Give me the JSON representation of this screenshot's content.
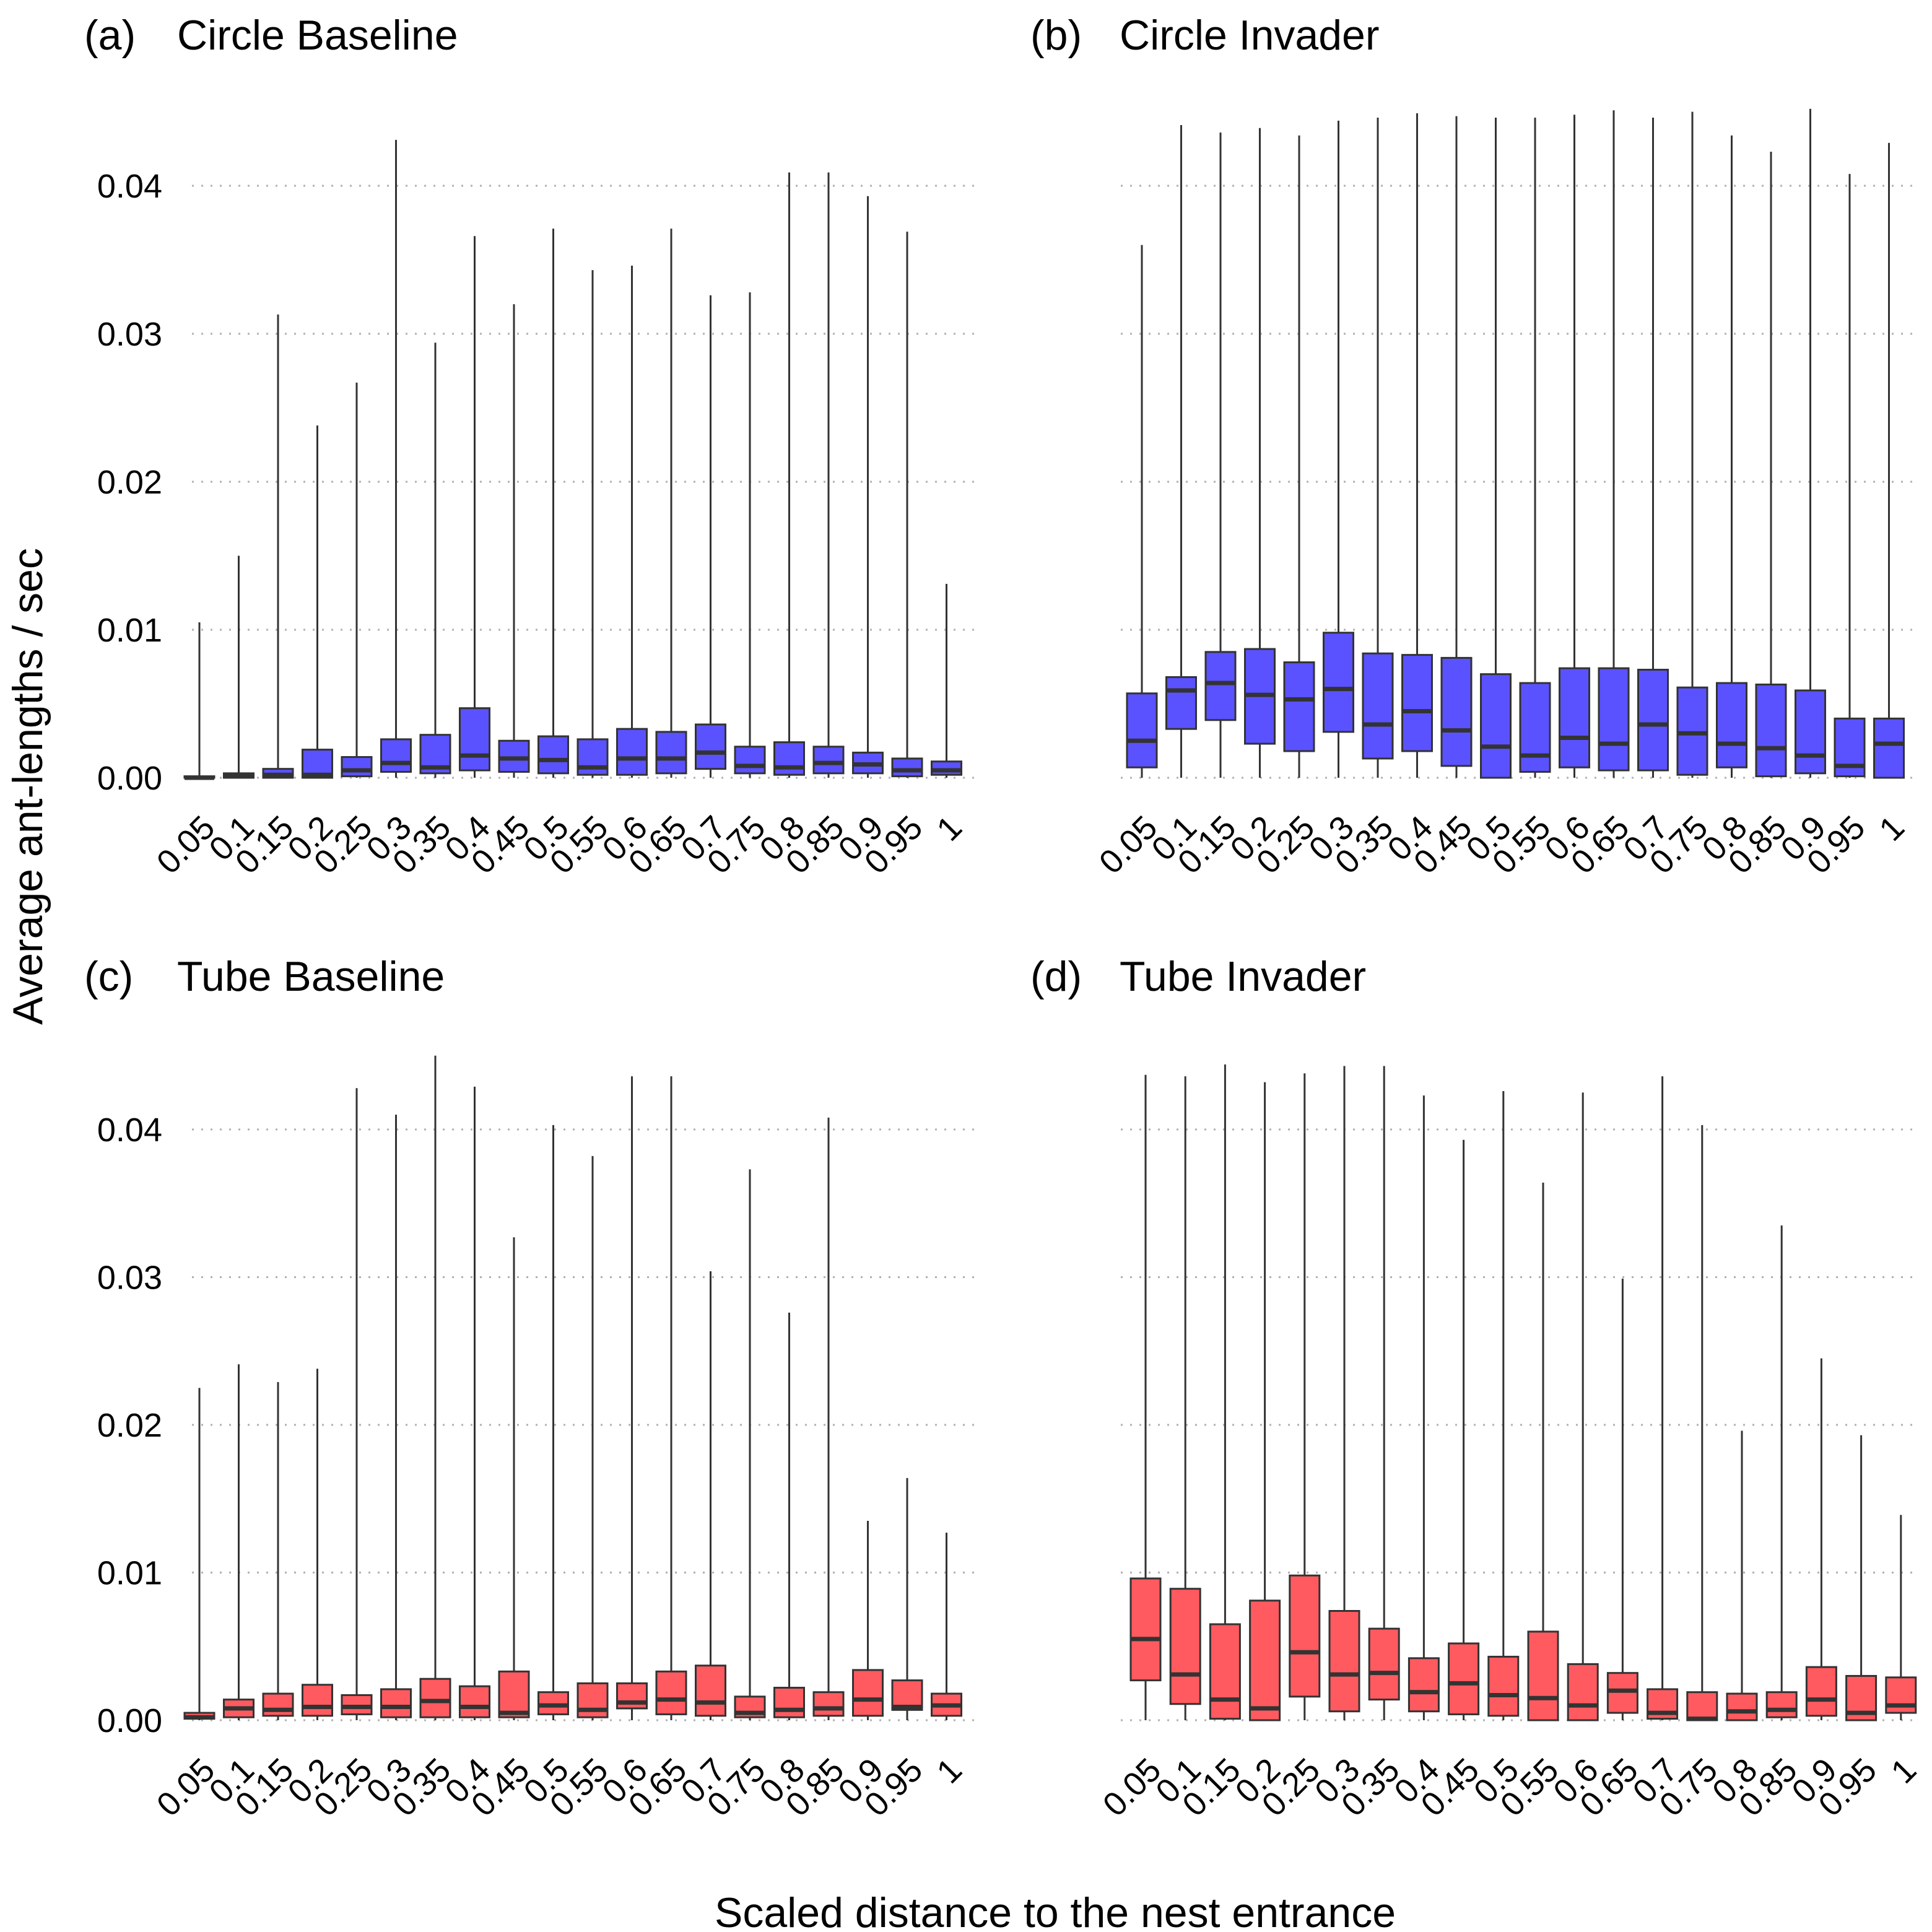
{
  "chart_data": {
    "type": "boxplot",
    "xlabel": "Scaled distance to the nest entrance",
    "ylabel": "Average ant-lengths / sec",
    "ylim": [
      0,
      0.045
    ],
    "yticks": [
      "0.00",
      "0.01",
      "0.02",
      "0.03",
      "0.04"
    ],
    "ytick_values": [
      0,
      0.01,
      0.02,
      0.03,
      0.04
    ],
    "categories": [
      "0.05",
      "0.1",
      "0.15",
      "0.2",
      "0.25",
      "0.3",
      "0.35",
      "0.4",
      "0.45",
      "0.5",
      "0.55",
      "0.6",
      "0.65",
      "0.7",
      "0.75",
      "0.8",
      "0.85",
      "0.9",
      "0.95",
      "1"
    ],
    "grid": "horizontal dotted",
    "colors": {
      "circle": "#5B52FF",
      "tube": "#FF5A5F",
      "outline": "#333333",
      "grid": "#B0B0B0"
    },
    "panels": [
      {
        "tag": "(a)",
        "title": "Circle Baseline",
        "fill": "circle",
        "boxes": [
          {
            "min": 0,
            "q1": 0,
            "median": 0,
            "q3": 0.0001,
            "max": 0.0105
          },
          {
            "min": 0,
            "q1": 0,
            "median": 0.0001,
            "q3": 0.0003,
            "max": 0.015
          },
          {
            "min": 0,
            "q1": 0,
            "median": 0.0002,
            "q3": 0.0006,
            "max": 0.0313
          },
          {
            "min": 0,
            "q1": 0,
            "median": 0.0002,
            "q3": 0.0019,
            "max": 0.0238
          },
          {
            "min": 0,
            "q1": 0.0001,
            "median": 0.0005,
            "q3": 0.0014,
            "max": 0.0267
          },
          {
            "min": 0,
            "q1": 0.0004,
            "median": 0.001,
            "q3": 0.0026,
            "max": 0.0431
          },
          {
            "min": 0,
            "q1": 0.0003,
            "median": 0.0007,
            "q3": 0.0029,
            "max": 0.0294
          },
          {
            "min": 0,
            "q1": 0.0005,
            "median": 0.0015,
            "q3": 0.0047,
            "max": 0.0366
          },
          {
            "min": 0,
            "q1": 0.0004,
            "median": 0.0013,
            "q3": 0.0025,
            "max": 0.032
          },
          {
            "min": 0,
            "q1": 0.0003,
            "median": 0.0012,
            "q3": 0.0028,
            "max": 0.0371
          },
          {
            "min": 0,
            "q1": 0.0002,
            "median": 0.0007,
            "q3": 0.0026,
            "max": 0.0343
          },
          {
            "min": 0,
            "q1": 0.0002,
            "median": 0.0013,
            "q3": 0.0033,
            "max": 0.0346
          },
          {
            "min": 0,
            "q1": 0.0003,
            "median": 0.0013,
            "q3": 0.0031,
            "max": 0.0371
          },
          {
            "min": 0,
            "q1": 0.0006,
            "median": 0.0017,
            "q3": 0.0036,
            "max": 0.0326
          },
          {
            "min": 0,
            "q1": 0.0003,
            "median": 0.0008,
            "q3": 0.0021,
            "max": 0.0328
          },
          {
            "min": 0,
            "q1": 0.0002,
            "median": 0.0007,
            "q3": 0.0024,
            "max": 0.0409
          },
          {
            "min": 0,
            "q1": 0.0003,
            "median": 0.001,
            "q3": 0.0021,
            "max": 0.0409
          },
          {
            "min": 0,
            "q1": 0.0003,
            "median": 0.0009,
            "q3": 0.0017,
            "max": 0.0393
          },
          {
            "min": 0,
            "q1": 0.0001,
            "median": 0.0005,
            "q3": 0.0013,
            "max": 0.0369
          },
          {
            "min": 0,
            "q1": 0.0002,
            "median": 0.0005,
            "q3": 0.0011,
            "max": 0.0131
          }
        ]
      },
      {
        "tag": "(b)",
        "title": "Circle Invader",
        "fill": "circle",
        "boxes": [
          {
            "min": 0,
            "q1": 0.0007,
            "median": 0.0025,
            "q3": 0.0057,
            "max": 0.036
          },
          {
            "min": 0,
            "q1": 0.0033,
            "median": 0.0059,
            "q3": 0.0068,
            "max": 0.0441
          },
          {
            "min": 0,
            "q1": 0.0039,
            "median": 0.0064,
            "q3": 0.0085,
            "max": 0.0436
          },
          {
            "min": 0,
            "q1": 0.0023,
            "median": 0.0056,
            "q3": 0.0087,
            "max": 0.0439
          },
          {
            "min": 0,
            "q1": 0.0018,
            "median": 0.0053,
            "q3": 0.0078,
            "max": 0.0434
          },
          {
            "min": 0,
            "q1": 0.0031,
            "median": 0.006,
            "q3": 0.0098,
            "max": 0.0444
          },
          {
            "min": 0,
            "q1": 0.0013,
            "median": 0.0036,
            "q3": 0.0084,
            "max": 0.0446
          },
          {
            "min": 0,
            "q1": 0.0018,
            "median": 0.0045,
            "q3": 0.0083,
            "max": 0.0449
          },
          {
            "min": 0,
            "q1": 0.0008,
            "median": 0.0032,
            "q3": 0.0081,
            "max": 0.0447
          },
          {
            "min": 0,
            "q1": 0,
            "median": 0.0021,
            "q3": 0.007,
            "max": 0.0446
          },
          {
            "min": 0,
            "q1": 0.0004,
            "median": 0.0015,
            "q3": 0.0064,
            "max": 0.0446
          },
          {
            "min": 0,
            "q1": 0.0007,
            "median": 0.0027,
            "q3": 0.0074,
            "max": 0.0448
          },
          {
            "min": 0,
            "q1": 0.0005,
            "median": 0.0023,
            "q3": 0.0074,
            "max": 0.0451
          },
          {
            "min": 0,
            "q1": 0.0005,
            "median": 0.0036,
            "q3": 0.0073,
            "max": 0.0446
          },
          {
            "min": 0,
            "q1": 0.0002,
            "median": 0.003,
            "q3": 0.0061,
            "max": 0.045
          },
          {
            "min": 0,
            "q1": 0.0007,
            "median": 0.0023,
            "q3": 0.0064,
            "max": 0.0434
          },
          {
            "min": 0,
            "q1": 0.0001,
            "median": 0.002,
            "q3": 0.0063,
            "max": 0.0423
          },
          {
            "min": 0,
            "q1": 0.0003,
            "median": 0.0015,
            "q3": 0.0059,
            "max": 0.0452
          },
          {
            "min": 0,
            "q1": 0.0001,
            "median": 0.0008,
            "q3": 0.004,
            "max": 0.0408
          },
          {
            "min": 0,
            "q1": 0,
            "median": 0.0023,
            "q3": 0.004,
            "max": 0.0429
          }
        ]
      },
      {
        "tag": "(c)",
        "title": "Tube Baseline",
        "fill": "tube",
        "boxes": [
          {
            "min": 0,
            "q1": 0.0001,
            "median": 0.0002,
            "q3": 0.0005,
            "max": 0.0225
          },
          {
            "min": 0,
            "q1": 0.0002,
            "median": 0.0008,
            "q3": 0.0014,
            "max": 0.0241
          },
          {
            "min": 0,
            "q1": 0.0003,
            "median": 0.0007,
            "q3": 0.0018,
            "max": 0.0229
          },
          {
            "min": 0,
            "q1": 0.0003,
            "median": 0.0009,
            "q3": 0.0024,
            "max": 0.0238
          },
          {
            "min": 0,
            "q1": 0.0004,
            "median": 0.0009,
            "q3": 0.0017,
            "max": 0.0428
          },
          {
            "min": 0,
            "q1": 0.0002,
            "median": 0.0009,
            "q3": 0.0021,
            "max": 0.041
          },
          {
            "min": 0,
            "q1": 0.0002,
            "median": 0.0013,
            "q3": 0.0028,
            "max": 0.045
          },
          {
            "min": 0,
            "q1": 0.0002,
            "median": 0.0009,
            "q3": 0.0023,
            "max": 0.0429
          },
          {
            "min": 0,
            "q1": 0.0002,
            "median": 0.0005,
            "q3": 0.0033,
            "max": 0.0327
          },
          {
            "min": 0,
            "q1": 0.0004,
            "median": 0.001,
            "q3": 0.0019,
            "max": 0.0403
          },
          {
            "min": 0,
            "q1": 0.0002,
            "median": 0.0007,
            "q3": 0.0025,
            "max": 0.0382
          },
          {
            "min": 0,
            "q1": 0.0008,
            "median": 0.0012,
            "q3": 0.0025,
            "max": 0.0436
          },
          {
            "min": 0,
            "q1": 0.0004,
            "median": 0.0014,
            "q3": 0.0033,
            "max": 0.0436
          },
          {
            "min": 0,
            "q1": 0.0003,
            "median": 0.0012,
            "q3": 0.0037,
            "max": 0.0304
          },
          {
            "min": 0,
            "q1": 0.0002,
            "median": 0.0005,
            "q3": 0.0016,
            "max": 0.0373
          },
          {
            "min": 0,
            "q1": 0.0002,
            "median": 0.0007,
            "q3": 0.0022,
            "max": 0.0276
          },
          {
            "min": 0,
            "q1": 0.0003,
            "median": 0.0008,
            "q3": 0.0019,
            "max": 0.0408
          },
          {
            "min": 0,
            "q1": 0.0003,
            "median": 0.0014,
            "q3": 0.0034,
            "max": 0.0135
          },
          {
            "min": 0,
            "q1": 0.0007,
            "median": 0.0009,
            "q3": 0.0027,
            "max": 0.0164
          },
          {
            "min": 0,
            "q1": 0.0003,
            "median": 0.001,
            "q3": 0.0018,
            "max": 0.0127
          }
        ]
      },
      {
        "tag": "(d)",
        "title": "Tube Invader",
        "fill": "tube",
        "boxes": [
          {
            "min": 0,
            "q1": 0.0027,
            "median": 0.0055,
            "q3": 0.0096,
            "max": 0.0437
          },
          {
            "min": 0,
            "q1": 0.0011,
            "median": 0.0031,
            "q3": 0.0089,
            "max": 0.0436
          },
          {
            "min": 0,
            "q1": 0.0001,
            "median": 0.0014,
            "q3": 0.0065,
            "max": 0.0444
          },
          {
            "min": 0,
            "q1": 0,
            "median": 0.0008,
            "q3": 0.0081,
            "max": 0.0432
          },
          {
            "min": 0,
            "q1": 0.0016,
            "median": 0.0046,
            "q3": 0.0098,
            "max": 0.0438
          },
          {
            "min": 0,
            "q1": 0.0006,
            "median": 0.0031,
            "q3": 0.0074,
            "max": 0.0443
          },
          {
            "min": 0,
            "q1": 0.0014,
            "median": 0.0032,
            "q3": 0.0062,
            "max": 0.0443
          },
          {
            "min": 0,
            "q1": 0.0006,
            "median": 0.0019,
            "q3": 0.0042,
            "max": 0.0423
          },
          {
            "min": 0,
            "q1": 0.0004,
            "median": 0.0025,
            "q3": 0.0052,
            "max": 0.0393
          },
          {
            "min": 0,
            "q1": 0.0003,
            "median": 0.0017,
            "q3": 0.0043,
            "max": 0.0426
          },
          {
            "min": 0,
            "q1": 0,
            "median": 0.0015,
            "q3": 0.006,
            "max": 0.0364
          },
          {
            "min": 0,
            "q1": 0,
            "median": 0.001,
            "q3": 0.0038,
            "max": 0.0425
          },
          {
            "min": 0,
            "q1": 0.0005,
            "median": 0.002,
            "q3": 0.0032,
            "max": 0.0299
          },
          {
            "min": 0,
            "q1": 0.0001,
            "median": 0.0005,
            "q3": 0.0021,
            "max": 0.0436
          },
          {
            "min": 0,
            "q1": 0,
            "median": 0.0001,
            "q3": 0.0019,
            "max": 0.0403
          },
          {
            "min": 0,
            "q1": 0,
            "median": 0.0006,
            "q3": 0.0018,
            "max": 0.0196
          },
          {
            "min": 0,
            "q1": 0.0002,
            "median": 0.0007,
            "q3": 0.0019,
            "max": 0.0335
          },
          {
            "min": 0,
            "q1": 0.0003,
            "median": 0.0014,
            "q3": 0.0036,
            "max": 0.0245
          },
          {
            "min": 0,
            "q1": 0,
            "median": 0.0005,
            "q3": 0.003,
            "max": 0.0193
          },
          {
            "min": 0,
            "q1": 0.0005,
            "median": 0.001,
            "q3": 0.0029,
            "max": 0.0139
          }
        ]
      }
    ]
  }
}
